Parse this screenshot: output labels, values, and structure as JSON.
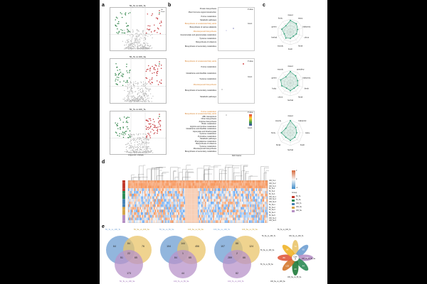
{
  "panel_labels": {
    "a": "a",
    "b": "b",
    "c": "c",
    "d": "d",
    "e": "e"
  },
  "volcano": {
    "titles": [
      "50_Te vs 100_Te",
      "50_Te vs 100_Se",
      "50_Te vs 100_Te"
    ],
    "xlabel": "Log₂(Fold Change)",
    "ylabel": "-Log₁₀(P value)",
    "legend": [
      "Up",
      "Down"
    ]
  },
  "pathways": {
    "p1": [
      "Protein biosynthesis",
      "Plant hormone signal transduction",
      "Purine metabolism",
      "Metabolic pathways",
      "Biosynthesis of unsaturated fatty acids",
      "Biosynthesis of various alkaloids",
      "Monoterpenoid biosynthesis",
      "Glucosinolate and glucosinolate metabolism",
      "Tyrosine metabolism",
      "Biosynthesis of cofactors",
      "Biosynthesis of secondary metabolites"
    ],
    "p2": [
      "Biosynthesis of unsaturated fatty acids",
      "Purine metabolism",
      "Glutathione and disulfide metabolism",
      "Tyrosine metabolism",
      "Monoterpenoid biosynthesis",
      "Biosynthesis of secondary metabolites",
      "Metabolic pathways"
    ],
    "p3": [
      "Purine metabolism",
      "Biosynthesis of unsaturated fatty acids",
      "ABC transporters",
      "Other biosynthesis",
      "Arginine biosynthesis",
      "Biotin metabolism",
      "Arginine and proline metabolism",
      "Glutathione and disulfide metabolism",
      "Glyoxylate and dicarboxylate",
      "Tyrosine metabolism",
      "Pyrimidine metabolism",
      "Metabolic pathways",
      "Phenylalanine metabolism",
      "Biosynthesis of cofactors",
      "Tyrosine metabolism",
      "Monoterpenoid biosynthesis",
      "Biosynthesis of secondary metabolites"
    ],
    "legend_pvalue": "P value",
    "legend_count": "Count",
    "xlabel": "Rich Factor"
  },
  "radar": {
    "r1": [
      "sweet",
      "waxy",
      "balsamic",
      "citrus",
      "floral",
      "fresh",
      "woody",
      "herbal",
      "green",
      "fruity"
    ],
    "r2": [
      "sweet",
      "powdery",
      "balsamic",
      "fresh",
      "floral",
      "herbal",
      "citrus",
      "fruity",
      "green",
      "woody"
    ],
    "r3": [
      "sweet",
      "balsamic",
      "waxy",
      "fresh",
      "herbal",
      "floral",
      "fruity",
      "woody"
    ]
  },
  "heatmap": {
    "rows": [
      "100_Te-1",
      "100_Te-2",
      "100_Te-3",
      "50_Te-1",
      "50_Te-2",
      "50_Te-3",
      "100_Se-1",
      "100_Se-2",
      "100_Se-3",
      "50_Se-1",
      "50_Se-2",
      "50_Se-3",
      "50_Se-4",
      "50_Se-5",
      "100_Se-4",
      "100_Se-5"
    ],
    "group_title": "Group",
    "groups": [
      "50_Te",
      "50_Se",
      "100_Te",
      "100_Se",
      "100_Se"
    ],
    "scale": [
      "2",
      "1",
      "0",
      "-1",
      "-2"
    ],
    "colors": {
      "group1": "#c0392b",
      "group2": "#2e8b57",
      "group3": "#4682b4",
      "group4": "#d4a54a",
      "group5": "#b58fc4"
    }
  },
  "venn": [
    {
      "a": "50_Te_vs_100_Te",
      "b": "50_Se_vs_100_Se",
      "c": "50_Te_vs_100_Se",
      "nums": [
        "64",
        "76",
        "84",
        "51",
        "22",
        "65",
        "173"
      ]
    },
    {
      "a": "50_Se_vs_50_Se",
      "b": "100_Se_vs_50_Se",
      "c": "100_Te_vs_50_Se",
      "nums": [
        "104",
        "456",
        "144",
        "84",
        "1",
        "65",
        "44"
      ]
    },
    {
      "a": "100_Se_vs_100_Te",
      "b": "100_Se_vs_50_Se",
      "c": "100_Te_vs_100_Te",
      "nums": [
        "107",
        "124",
        "88",
        "289",
        "2",
        "66",
        "82"
      ]
    }
  ],
  "flower": {
    "petals": [
      "50_Te_vs_100_Te",
      "100_Se_vs_100_Te",
      "100_Te_vs_50_Se",
      "100_Se_vs_50_Se",
      "100_Se_vs_100_Se",
      "50_Te_vs_50_Se",
      "50_Se_vs_100_Se",
      "50_Se_vs_100_Te"
    ],
    "counts": [
      "70",
      "65",
      "166",
      "44",
      "23",
      "125",
      "89",
      "96"
    ],
    "core_label": "Core",
    "core": "8"
  }
}
